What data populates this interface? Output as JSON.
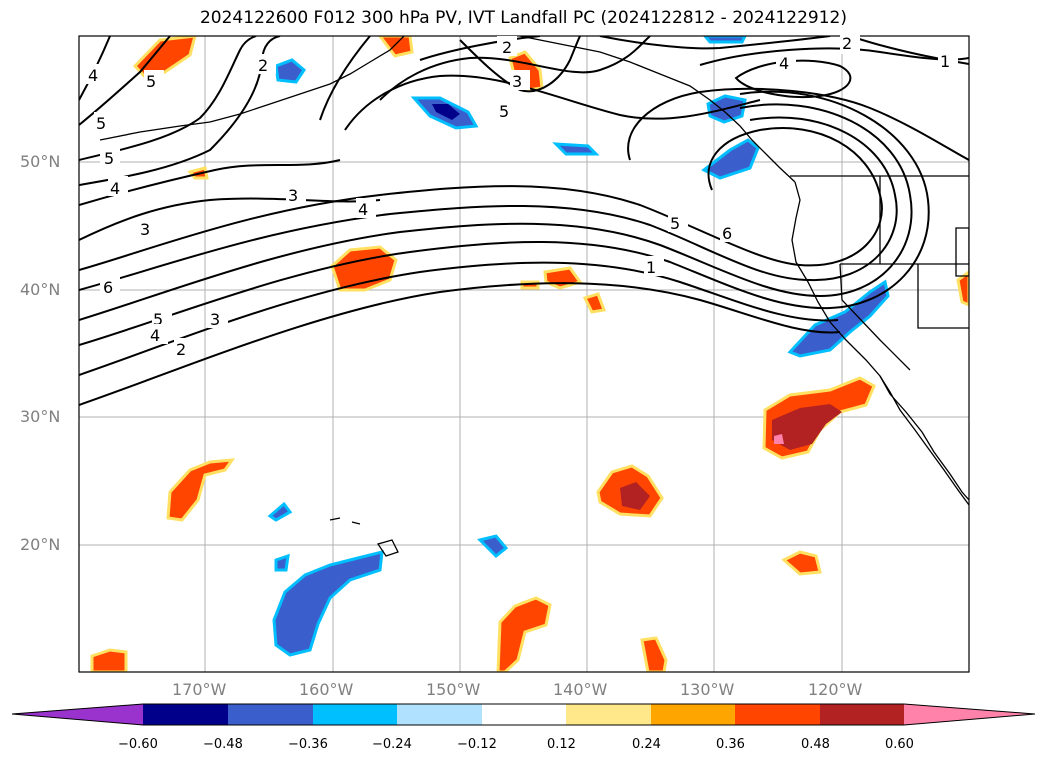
{
  "title": "2024122600 F012 300 hPa PV, IVT Landfall PC (2024122812 - 2024122912)",
  "lat_labels": [
    "50°N",
    "40°N",
    "30°N",
    "20°N"
  ],
  "lon_labels": [
    "170°W",
    "160°W",
    "150°W",
    "140°W",
    "130°W",
    "120°W"
  ],
  "colorbar": {
    "ticks": [
      "−0.60",
      "−0.48",
      "−0.36",
      "−0.24",
      "−0.12",
      "0.12",
      "0.24",
      "0.36",
      "0.48",
      "0.60"
    ],
    "colors": [
      "#9a32cd",
      "#00008b",
      "#3a5fcd",
      "#00bfff",
      "#b0e2ff",
      "#ffffff",
      "#ffe88a",
      "#ffa500",
      "#ff4500",
      "#b22222",
      "#ff82ab"
    ]
  },
  "contour_labels": [
    "2",
    "5",
    "4",
    "5",
    "4",
    "3",
    "6",
    "5",
    "4",
    "2",
    "3",
    "3",
    "4",
    "5",
    "1",
    "3",
    "5",
    "6",
    "2",
    "4",
    "1",
    "2",
    "5"
  ]
}
